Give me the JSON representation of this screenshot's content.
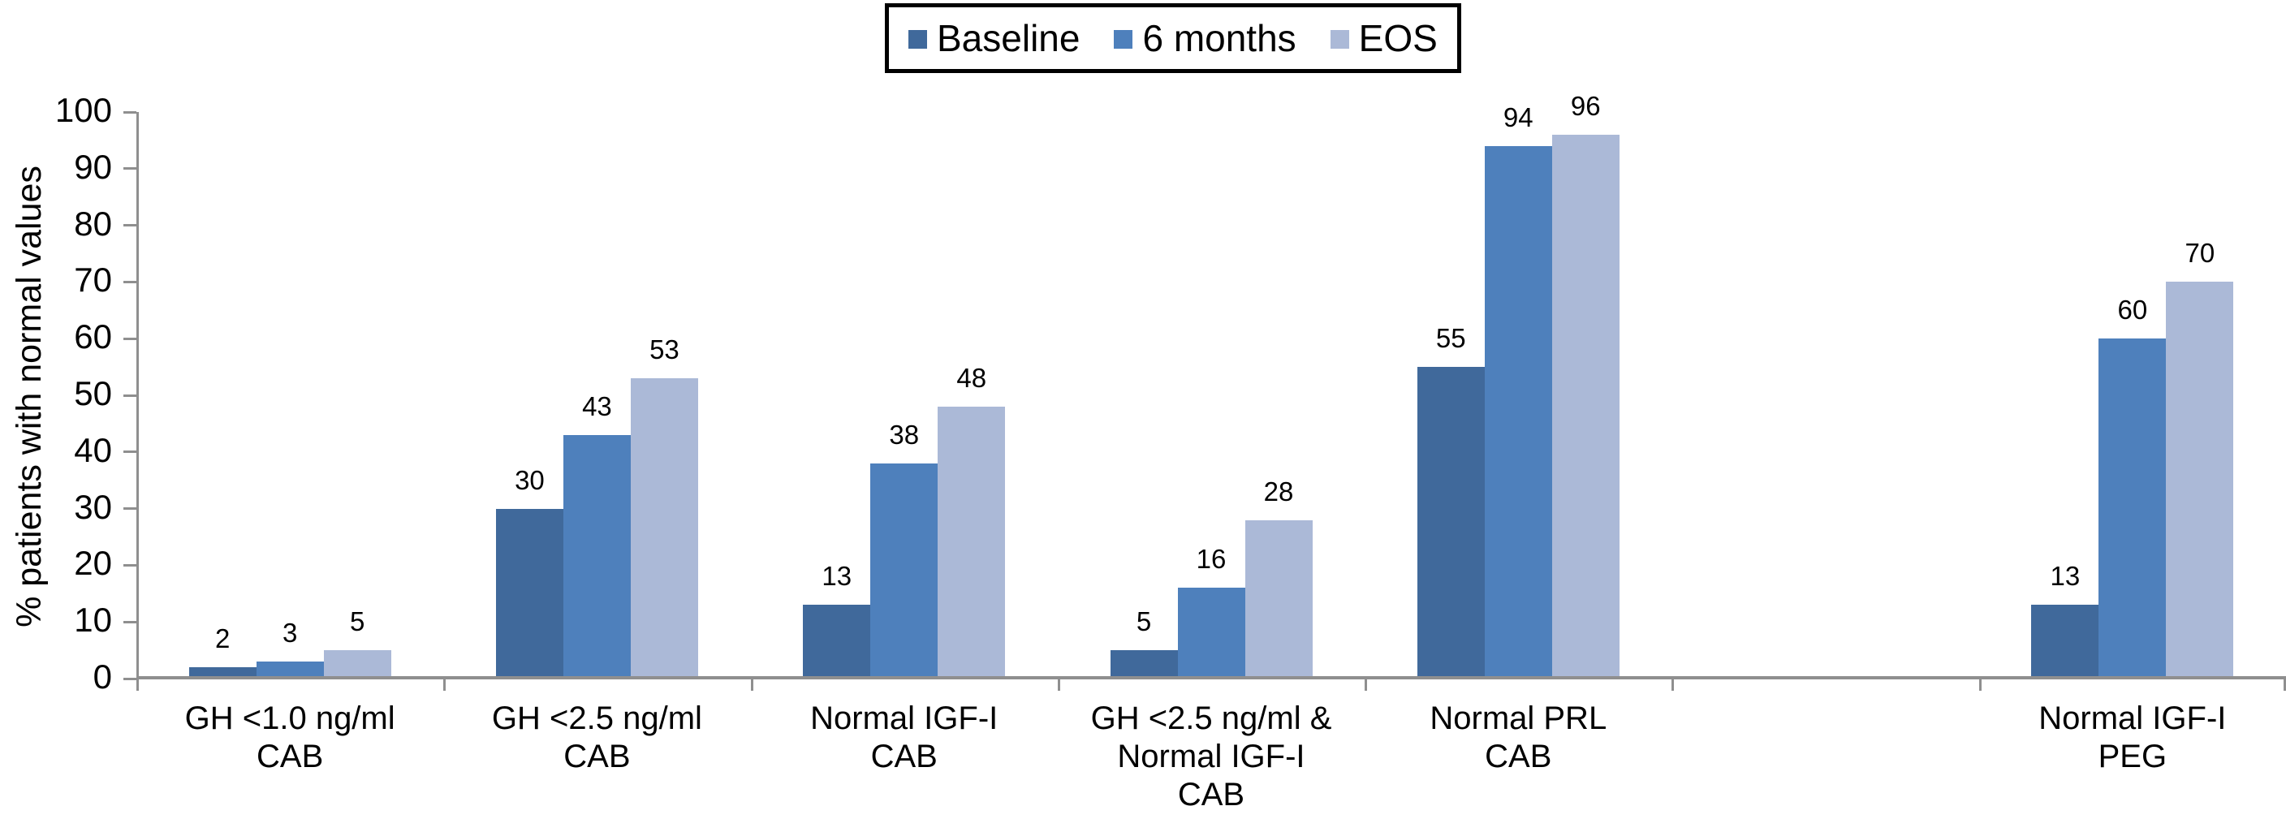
{
  "figure": {
    "background": "#ffffff"
  },
  "chart_data": {
    "type": "bar",
    "title": "",
    "xlabel": "",
    "ylabel": "% patients with normal values",
    "ylim": [
      0,
      100
    ],
    "y_ticks": [
      0,
      10,
      20,
      30,
      40,
      50,
      60,
      70,
      80,
      90,
      100
    ],
    "grid": false,
    "data_labels_visible": true,
    "axis_color": "#8F8F8F",
    "text_color": "#000000",
    "legend": {
      "position": "top-center",
      "border": true,
      "border_color": "#000000"
    },
    "categories": [
      {
        "label": "GH <1.0 ng/ml CAB",
        "lines": [
          "GH <1.0 ng/ml",
          "CAB"
        ]
      },
      {
        "label": "GH <2.5 ng/ml CAB",
        "lines": [
          "GH <2.5 ng/ml",
          "CAB"
        ]
      },
      {
        "label": "Normal IGF-I CAB",
        "lines": [
          "Normal IGF-I",
          "CAB"
        ]
      },
      {
        "label": "GH <2.5 ng/ml & Normal IGF-I CAB",
        "lines": [
          "GH <2.5 ng/ml &",
          "Normal IGF-I",
          "CAB"
        ]
      },
      {
        "label": "Normal PRL CAB",
        "lines": [
          "Normal PRL",
          "CAB"
        ]
      },
      {
        "label": "Normal IGF-I PEG",
        "lines": [
          "Normal IGF-I",
          "PEG"
        ]
      }
    ],
    "series": [
      {
        "name": "Baseline",
        "color": "#40699B",
        "values": [
          2,
          30,
          13,
          5,
          55,
          13
        ]
      },
      {
        "name": "6 months",
        "color": "#4E80BC",
        "values": [
          3,
          43,
          38,
          16,
          94,
          60
        ]
      },
      {
        "name": "EOS",
        "color": "#ABB9D7",
        "values": [
          5,
          53,
          48,
          28,
          96,
          70
        ]
      }
    ],
    "layout": {
      "slot_count": 7,
      "category_slot_indexes": [
        0,
        1,
        2,
        3,
        4,
        6
      ],
      "legend_position": "top-center"
    }
  }
}
